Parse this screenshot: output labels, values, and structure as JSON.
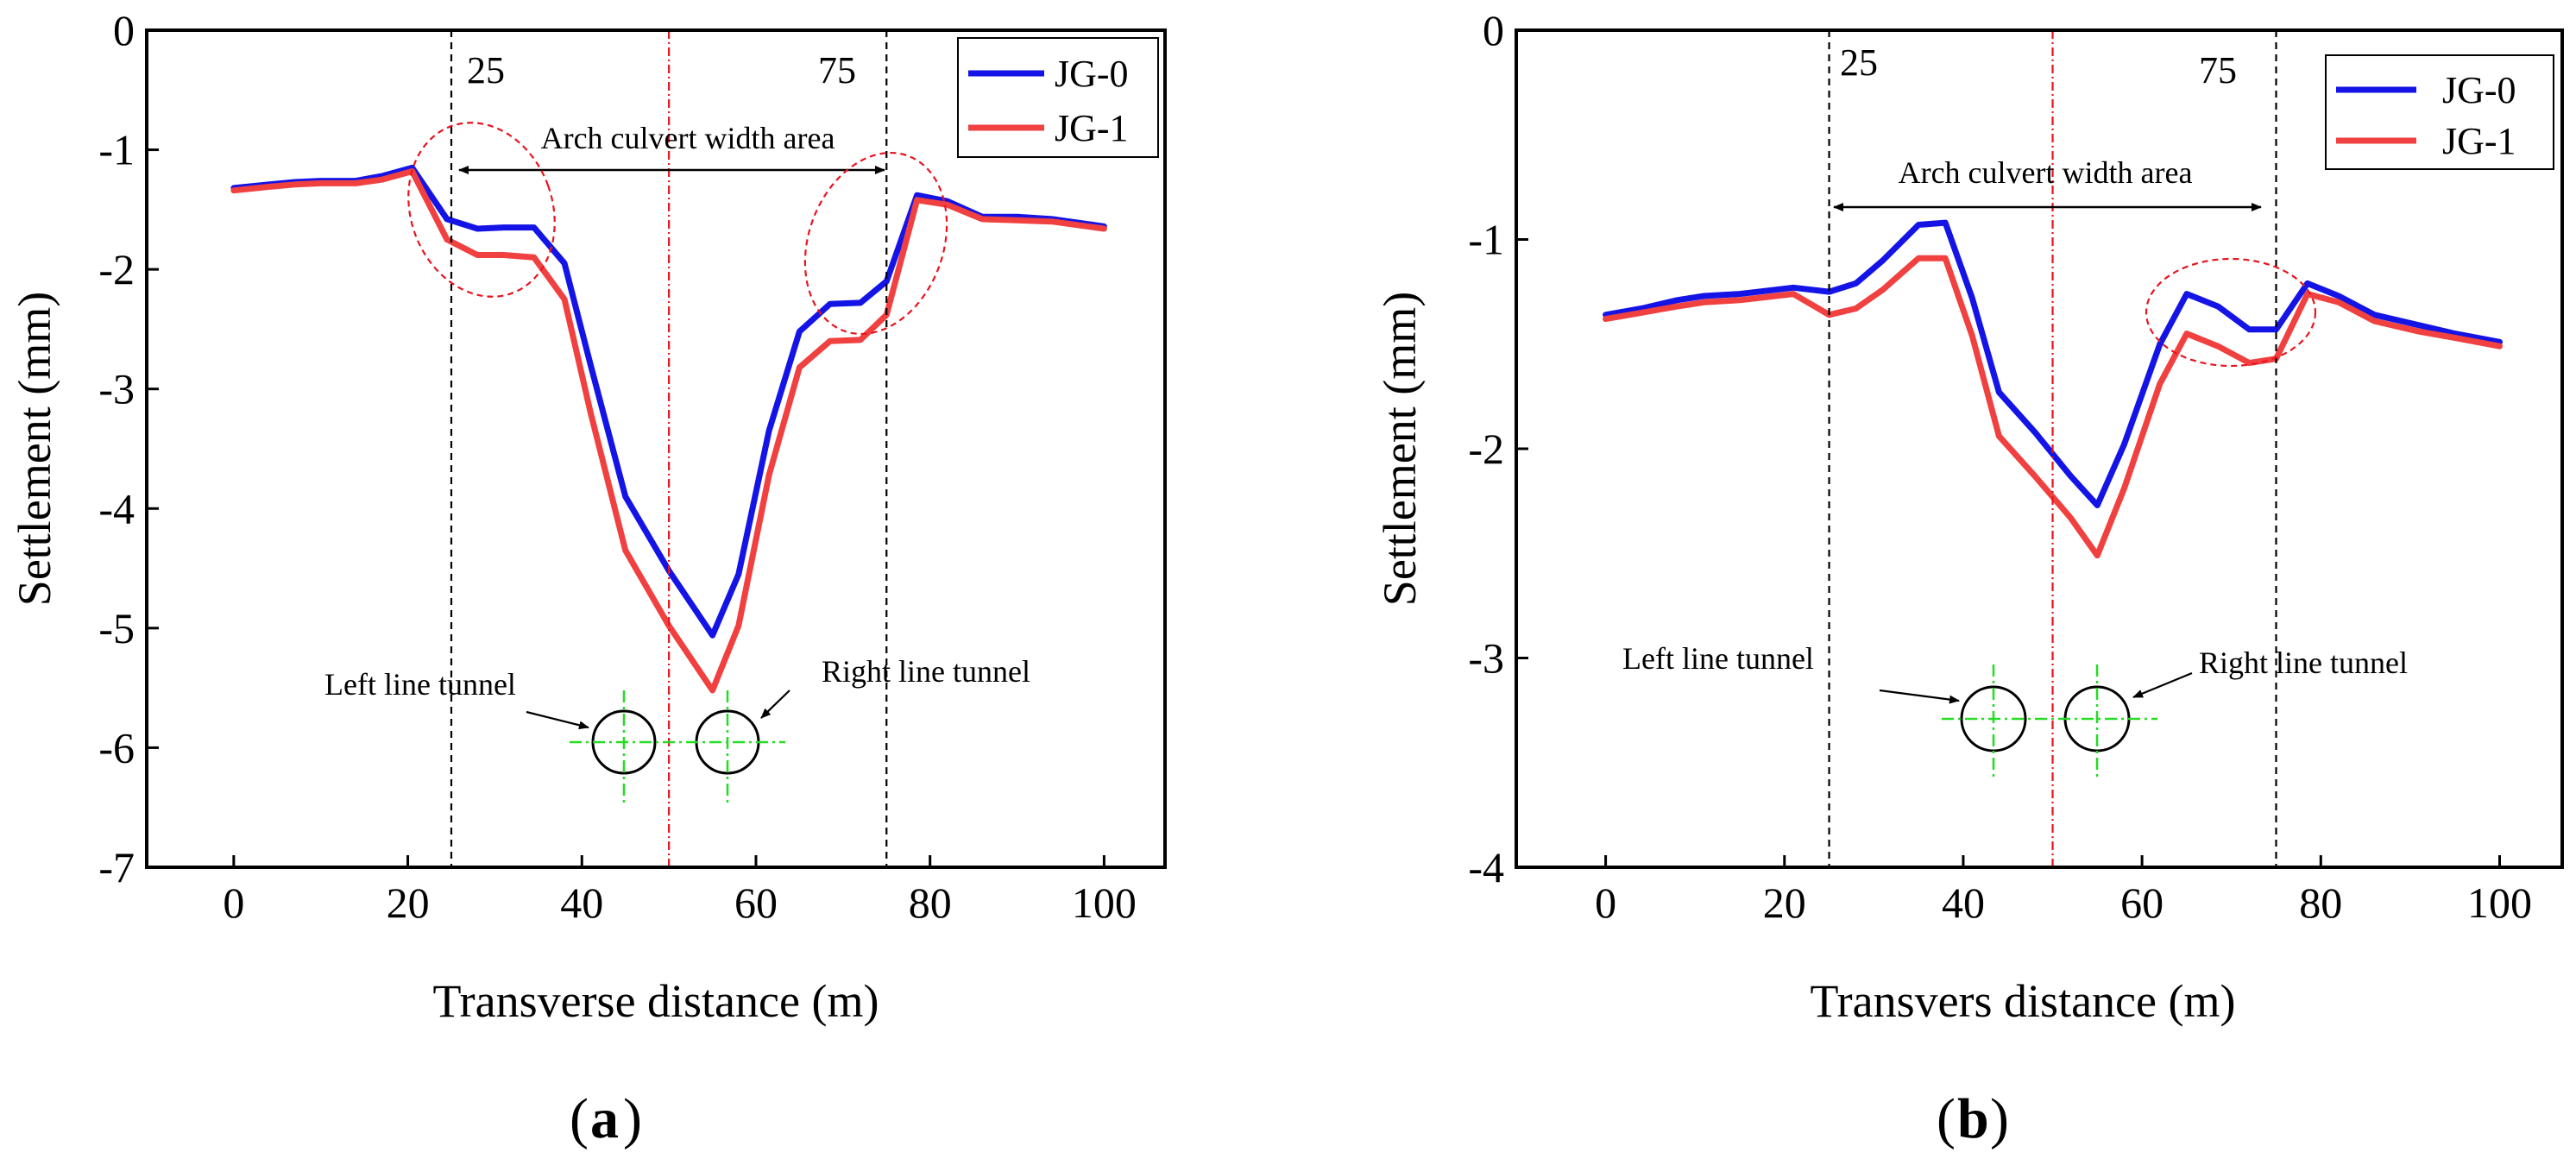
{
  "chart_data": [
    {
      "type": "line",
      "panel_label": "a",
      "xlabel": "Transverse distance (m)",
      "ylabel": "Settlement (mm)",
      "xlim": [
        -10,
        107
      ],
      "ylim": [
        -7,
        0
      ],
      "x_ticks": [
        0,
        20,
        40,
        60,
        80,
        100
      ],
      "y_ticks": [
        0,
        -1,
        -2,
        -3,
        -4,
        -5,
        -6,
        -7
      ],
      "legend": {
        "position": "top-right",
        "entries": [
          "JG-0",
          "JG-1"
        ]
      },
      "series": [
        {
          "name": "JG-0",
          "color": "#1414e6",
          "x": [
            0,
            4,
            7,
            10,
            14,
            17,
            20.5,
            24.5,
            28,
            31,
            34.5,
            38,
            41,
            45,
            50,
            55,
            58,
            61.5,
            65,
            68.5,
            72,
            75,
            78.5,
            82,
            86,
            90,
            94,
            100
          ],
          "y": [
            -1.32,
            -1.29,
            -1.27,
            -1.26,
            -1.26,
            -1.22,
            -1.15,
            -1.58,
            -1.66,
            -1.65,
            -1.65,
            -1.95,
            -2.8,
            -3.9,
            -4.52,
            -5.06,
            -4.55,
            -3.35,
            -2.52,
            -2.29,
            -2.28,
            -2.1,
            -1.38,
            -1.43,
            -1.56,
            -1.56,
            -1.58,
            -1.64
          ]
        },
        {
          "name": "JG-1",
          "color": "#f04040",
          "x": [
            0,
            4,
            7,
            10,
            14,
            17,
            20.5,
            24.5,
            28,
            31,
            34.5,
            38,
            41,
            45,
            50,
            55,
            58,
            61.5,
            65,
            68.5,
            72,
            75,
            78.5,
            82,
            86,
            90,
            94,
            100
          ],
          "y": [
            -1.34,
            -1.31,
            -1.29,
            -1.28,
            -1.28,
            -1.25,
            -1.18,
            -1.75,
            -1.88,
            -1.88,
            -1.9,
            -2.25,
            -3.2,
            -4.35,
            -4.98,
            -5.52,
            -4.98,
            -3.72,
            -2.82,
            -2.6,
            -2.59,
            -2.38,
            -1.42,
            -1.46,
            -1.58,
            -1.59,
            -1.6,
            -1.66
          ]
        }
      ],
      "annotations": {
        "dashed_lines_x": [
          25,
          75
        ],
        "center_line_x": 50,
        "label_25": "25",
        "label_75": "75",
        "width_area": "Arch culvert width area",
        "left_tunnel": "Left line tunnel",
        "right_tunnel": "Right line tunnel"
      }
    },
    {
      "type": "line",
      "panel_label": "b",
      "xlabel": "Transvers distance (m)",
      "ylabel": "Settlement (mm)",
      "xlim": [
        -10,
        107
      ],
      "ylim": [
        -4,
        0
      ],
      "x_ticks": [
        0,
        20,
        40,
        60,
        80,
        100
      ],
      "y_ticks": [
        0,
        -1,
        -2,
        -3,
        -4
      ],
      "legend": {
        "position": "top-right",
        "entries": [
          "JG-0",
          "JG-1"
        ]
      },
      "series": [
        {
          "name": "JG-0",
          "color": "#1414e6",
          "x": [
            0,
            4,
            8,
            11,
            15,
            21,
            25,
            28,
            31,
            35,
            38,
            41,
            44,
            48,
            52,
            55,
            58,
            62,
            65,
            68.5,
            72,
            75,
            78.5,
            82,
            86,
            91,
            95,
            100
          ],
          "y": [
            -1.36,
            -1.33,
            -1.29,
            -1.27,
            -1.26,
            -1.23,
            -1.25,
            -1.21,
            -1.1,
            -0.93,
            -0.92,
            -1.28,
            -1.73,
            -1.92,
            -2.13,
            -2.27,
            -1.98,
            -1.5,
            -1.26,
            -1.32,
            -1.43,
            -1.43,
            -1.21,
            -1.27,
            -1.36,
            -1.41,
            -1.45,
            -1.49
          ]
        },
        {
          "name": "JG-1",
          "color": "#f04040",
          "x": [
            0,
            4,
            8,
            11,
            15,
            21,
            25,
            28,
            31,
            35,
            38,
            41,
            44,
            48,
            52,
            55,
            58,
            62,
            65,
            68.5,
            72,
            75,
            78.5,
            82,
            86,
            91,
            95,
            100
          ],
          "y": [
            -1.38,
            -1.35,
            -1.32,
            -1.3,
            -1.29,
            -1.26,
            -1.36,
            -1.33,
            -1.24,
            -1.09,
            -1.09,
            -1.46,
            -1.94,
            -2.13,
            -2.33,
            -2.51,
            -2.19,
            -1.69,
            -1.45,
            -1.51,
            -1.59,
            -1.57,
            -1.26,
            -1.3,
            -1.39,
            -1.44,
            -1.47,
            -1.51
          ]
        }
      ],
      "annotations": {
        "dashed_lines_x": [
          25,
          75
        ],
        "center_line_x": 50,
        "label_25": "25",
        "label_75": "75",
        "width_area": "Arch culvert width area",
        "left_tunnel": "Left line tunnel",
        "right_tunnel": "Right line tunnel"
      }
    }
  ]
}
